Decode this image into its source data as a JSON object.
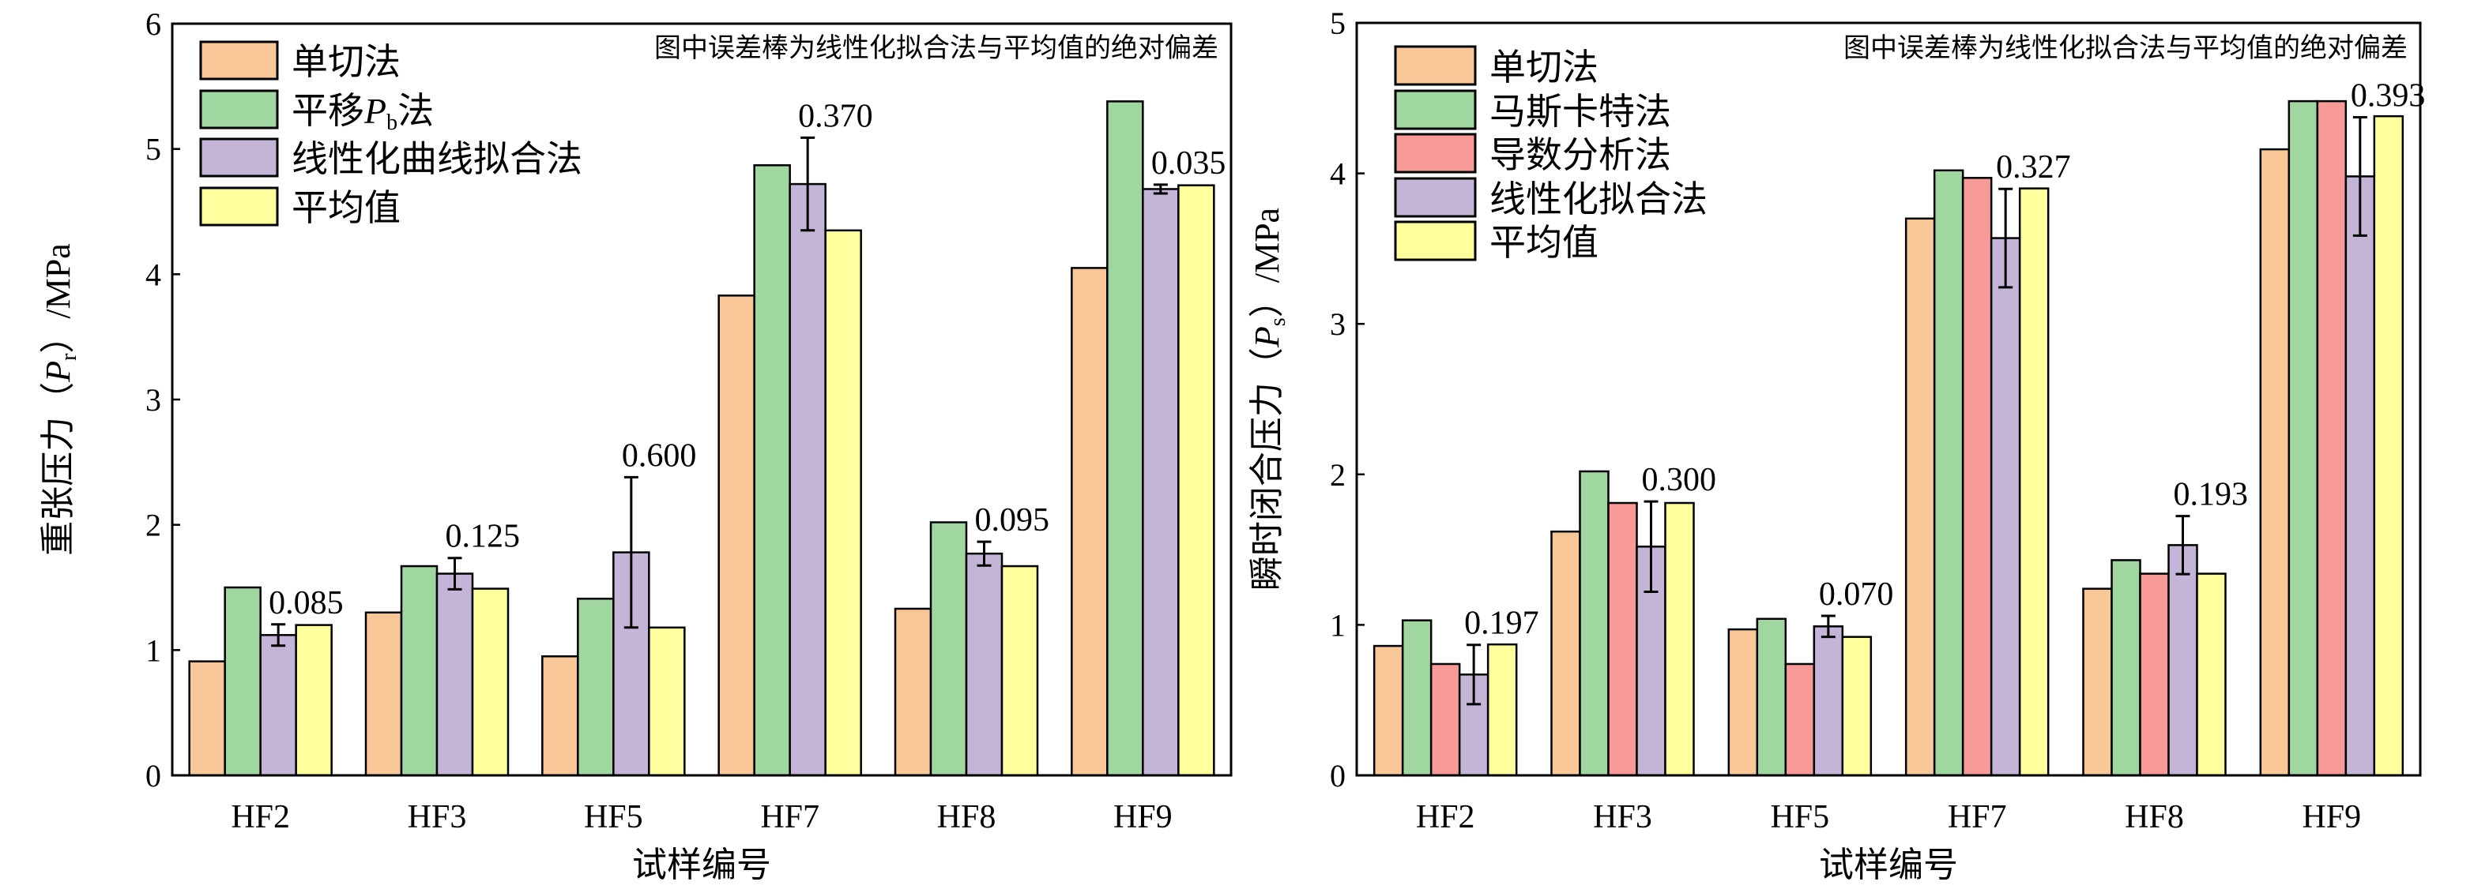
{
  "chart_data": [
    {
      "type": "bar",
      "annotation": "图中误差棒为线性化拟合法与平均值的绝对偏差",
      "xlabel": "试样编号",
      "ylabel": {
        "prefix": "重张压力（",
        "var": "P",
        "sub": "r",
        "suffix": "）/MPa"
      },
      "ylim": [
        0,
        6
      ],
      "yticks": [
        "0",
        "1",
        "2",
        "3",
        "4",
        "5",
        "6"
      ],
      "categories": [
        "HF2",
        "HF3",
        "HF5",
        "HF7",
        "HF8",
        "HF9"
      ],
      "legend_position": "top-left",
      "series": [
        {
          "name": {
            "pre": "单切法",
            "var": "",
            "sub": "",
            "post": ""
          },
          "color": "#F9C797",
          "values": [
            0.91,
            1.3,
            0.95,
            3.83,
            1.33,
            4.05
          ]
        },
        {
          "name": {
            "pre": "平移",
            "var": "P",
            "sub": "b",
            "post": "法"
          },
          "color": "#A0D6A0",
          "values": [
            1.5,
            1.67,
            1.41,
            4.87,
            2.02,
            5.38
          ]
        },
        {
          "name": {
            "pre": "线性化曲线拟合法",
            "var": "",
            "sub": "",
            "post": ""
          },
          "color": "#C4B4D7",
          "values": [
            1.12,
            1.61,
            1.78,
            4.72,
            1.77,
            4.68
          ]
        },
        {
          "name": {
            "pre": "平均值",
            "var": "",
            "sub": "",
            "post": ""
          },
          "color": "#FFFF9E",
          "values": [
            1.2,
            1.49,
            1.18,
            4.35,
            1.67,
            4.71
          ]
        }
      ],
      "error_series_index": 2,
      "errors": [
        0.085,
        0.125,
        0.6,
        0.37,
        0.095,
        0.035
      ],
      "error_labels": [
        "0.085",
        "0.125",
        "0.600",
        "0.370",
        "0.095",
        "0.035"
      ]
    },
    {
      "type": "bar",
      "annotation": "图中误差棒为线性化拟合法与平均值的绝对偏差",
      "xlabel": "试样编号",
      "ylabel": {
        "prefix": "瞬时闭合压力（",
        "var": "P",
        "sub": "s",
        "suffix": "）/MPa"
      },
      "ylim": [
        0,
        5
      ],
      "yticks": [
        "0",
        "1",
        "2",
        "3",
        "4",
        "5"
      ],
      "categories": [
        "HF2",
        "HF3",
        "HF5",
        "HF7",
        "HF8",
        "HF9"
      ],
      "legend_position": "top-left",
      "series": [
        {
          "name": {
            "pre": "单切法",
            "var": "",
            "sub": "",
            "post": ""
          },
          "color": "#F9C797",
          "values": [
            0.86,
            1.62,
            0.97,
            3.7,
            1.24,
            4.16
          ]
        },
        {
          "name": {
            "pre": "马斯卡特法",
            "var": "",
            "sub": "",
            "post": ""
          },
          "color": "#A0D6A0",
          "values": [
            1.03,
            2.02,
            1.04,
            4.02,
            1.43,
            4.48
          ]
        },
        {
          "name": {
            "pre": "导数分析法",
            "var": "",
            "sub": "",
            "post": ""
          },
          "color": "#F89A98",
          "values": [
            0.74,
            1.81,
            0.74,
            3.97,
            1.34,
            4.48
          ]
        },
        {
          "name": {
            "pre": "线性化拟合法",
            "var": "",
            "sub": "",
            "post": ""
          },
          "color": "#C4B4D7",
          "values": [
            0.67,
            1.52,
            0.99,
            3.57,
            1.53,
            3.98
          ]
        },
        {
          "name": {
            "pre": "平均值",
            "var": "",
            "sub": "",
            "post": ""
          },
          "color": "#FFFF9E",
          "values": [
            0.87,
            1.81,
            0.92,
            3.9,
            1.34,
            4.38
          ]
        }
      ],
      "error_series_index": 3,
      "errors": [
        0.197,
        0.3,
        0.07,
        0.327,
        0.193,
        0.393
      ],
      "error_labels": [
        "0.197",
        "0.300",
        "0.070",
        "0.327",
        "0.193",
        "0.393"
      ]
    }
  ]
}
